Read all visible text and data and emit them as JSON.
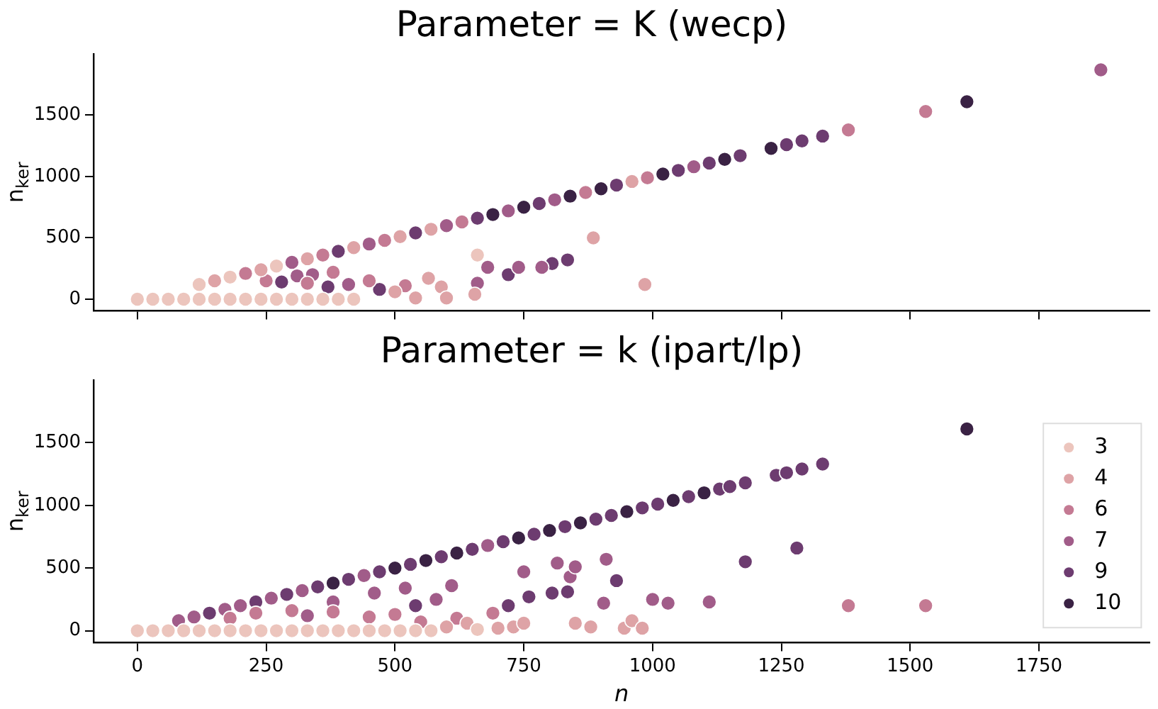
{
  "chart_data": [
    {
      "type": "scatter",
      "title": "Parameter = K (wecp)",
      "ylabel": "n$_{ker}$",
      "xlim": [
        -85,
        1965
      ],
      "ylim": [
        -95,
        2000
      ],
      "xticks": [
        0,
        250,
        500,
        750,
        1000,
        1250,
        1500,
        1750
      ],
      "yticks": [
        0,
        500,
        1000,
        1500
      ],
      "tick_labels": "y",
      "marker": "circle",
      "legend": false,
      "series": [
        {
          "color": "#ecc5bd",
          "x": [
            0,
            30,
            60,
            90,
            120,
            150,
            180,
            210,
            240,
            270,
            300,
            330,
            360,
            390,
            420,
            120,
            180,
            270,
            660
          ],
          "values": [
            0,
            0,
            0,
            0,
            0,
            0,
            0,
            0,
            0,
            0,
            0,
            0,
            0,
            0,
            0,
            120,
            180,
            270,
            360
          ]
        },
        {
          "color": "#dea3a6",
          "x": [
            150,
            240,
            330,
            420,
            510,
            570,
            960,
            985,
            885,
            655,
            590,
            600,
            565,
            540,
            500
          ],
          "values": [
            150,
            240,
            330,
            420,
            510,
            570,
            960,
            120,
            500,
            40,
            100,
            10,
            170,
            10,
            60
          ]
        },
        {
          "color": "#c47a93",
          "x": [
            210,
            360,
            480,
            630,
            870,
            990,
            1380,
            1530,
            520,
            450,
            380,
            330,
            250
          ],
          "values": [
            210,
            360,
            480,
            630,
            870,
            990,
            1380,
            1530,
            110,
            150,
            220,
            130,
            150
          ]
        },
        {
          "color": "#a15c89",
          "x": [
            300,
            450,
            600,
            720,
            810,
            1080,
            1870,
            680,
            660,
            740,
            785,
            410,
            340,
            310
          ],
          "values": [
            300,
            450,
            600,
            720,
            810,
            1080,
            1870,
            260,
            130,
            260,
            260,
            120,
            200,
            190
          ]
        },
        {
          "color": "#6d3c70",
          "x": [
            390,
            540,
            660,
            780,
            930,
            1050,
            1110,
            1170,
            1260,
            1290,
            1330,
            835,
            805,
            720,
            470,
            370,
            280
          ],
          "values": [
            390,
            540,
            660,
            780,
            930,
            1050,
            1110,
            1170,
            1260,
            1290,
            1330,
            320,
            290,
            200,
            80,
            100,
            140
          ]
        },
        {
          "color": "#3a2244",
          "x": [
            690,
            750,
            840,
            900,
            1020,
            1140,
            1230,
            1610
          ],
          "values": [
            690,
            750,
            840,
            900,
            1020,
            1140,
            1230,
            1610
          ]
        }
      ]
    },
    {
      "type": "scatter",
      "title": "Parameter = k (ipart/lp)",
      "xlabel": "n",
      "ylabel": "n$_{ker}$",
      "xlim": [
        -85,
        1965
      ],
      "ylim": [
        -95,
        2000
      ],
      "xticks": [
        0,
        250,
        500,
        750,
        1000,
        1250,
        1500,
        1750
      ],
      "yticks": [
        0,
        500,
        1000,
        1500
      ],
      "marker": "circle",
      "legend": "right",
      "series": [
        {
          "name": "3",
          "color": "#ecc5bd",
          "x": [
            0,
            30,
            60,
            90,
            120,
            150,
            180,
            210,
            240,
            270,
            300,
            330,
            360,
            390,
            420,
            450,
            480,
            510,
            540,
            570,
            660
          ],
          "values": [
            0,
            0,
            0,
            0,
            0,
            0,
            0,
            0,
            0,
            0,
            0,
            0,
            0,
            0,
            0,
            0,
            0,
            0,
            0,
            0,
            10
          ]
        },
        {
          "name": "4",
          "color": "#dea3a6",
          "x": [
            600,
            640,
            700,
            730,
            750,
            850,
            880,
            945,
            960,
            980
          ],
          "values": [
            30,
            60,
            20,
            30,
            60,
            60,
            30,
            20,
            80,
            20
          ]
        },
        {
          "name": "6",
          "color": "#c47a93",
          "x": [
            180,
            230,
            300,
            380,
            450,
            500,
            550,
            620,
            690,
            1380,
            1530
          ],
          "values": [
            100,
            140,
            160,
            150,
            110,
            130,
            70,
            100,
            140,
            200,
            200
          ]
        },
        {
          "name": "7",
          "color": "#a15c89",
          "x": [
            80,
            110,
            170,
            200,
            260,
            320,
            440,
            680,
            330,
            380,
            460,
            520,
            580,
            610,
            750,
            815,
            840,
            850,
            910,
            905,
            1000,
            1030,
            1110
          ],
          "values": [
            80,
            110,
            170,
            200,
            260,
            320,
            440,
            680,
            120,
            230,
            300,
            340,
            250,
            360,
            470,
            540,
            430,
            510,
            570,
            220,
            250,
            220,
            230
          ]
        },
        {
          "name": "9",
          "color": "#6d3c70",
          "x": [
            140,
            230,
            290,
            350,
            410,
            470,
            530,
            590,
            650,
            710,
            770,
            830,
            890,
            920,
            980,
            1010,
            1070,
            1130,
            1150,
            1180,
            1240,
            1260,
            1290,
            1330,
            930,
            1180,
            1280,
            835,
            805,
            760,
            720,
            540
          ],
          "values": [
            140,
            230,
            290,
            350,
            410,
            470,
            530,
            590,
            650,
            710,
            770,
            830,
            890,
            920,
            980,
            1010,
            1070,
            1130,
            1150,
            1180,
            1240,
            1260,
            1290,
            1330,
            400,
            550,
            660,
            310,
            300,
            270,
            200,
            200
          ]
        },
        {
          "name": "10",
          "color": "#3a2244",
          "x": [
            380,
            500,
            560,
            620,
            740,
            800,
            860,
            950,
            1040,
            1100,
            1610
          ],
          "values": [
            380,
            500,
            560,
            620,
            740,
            800,
            860,
            950,
            1040,
            1100,
            1610
          ]
        }
      ]
    }
  ]
}
